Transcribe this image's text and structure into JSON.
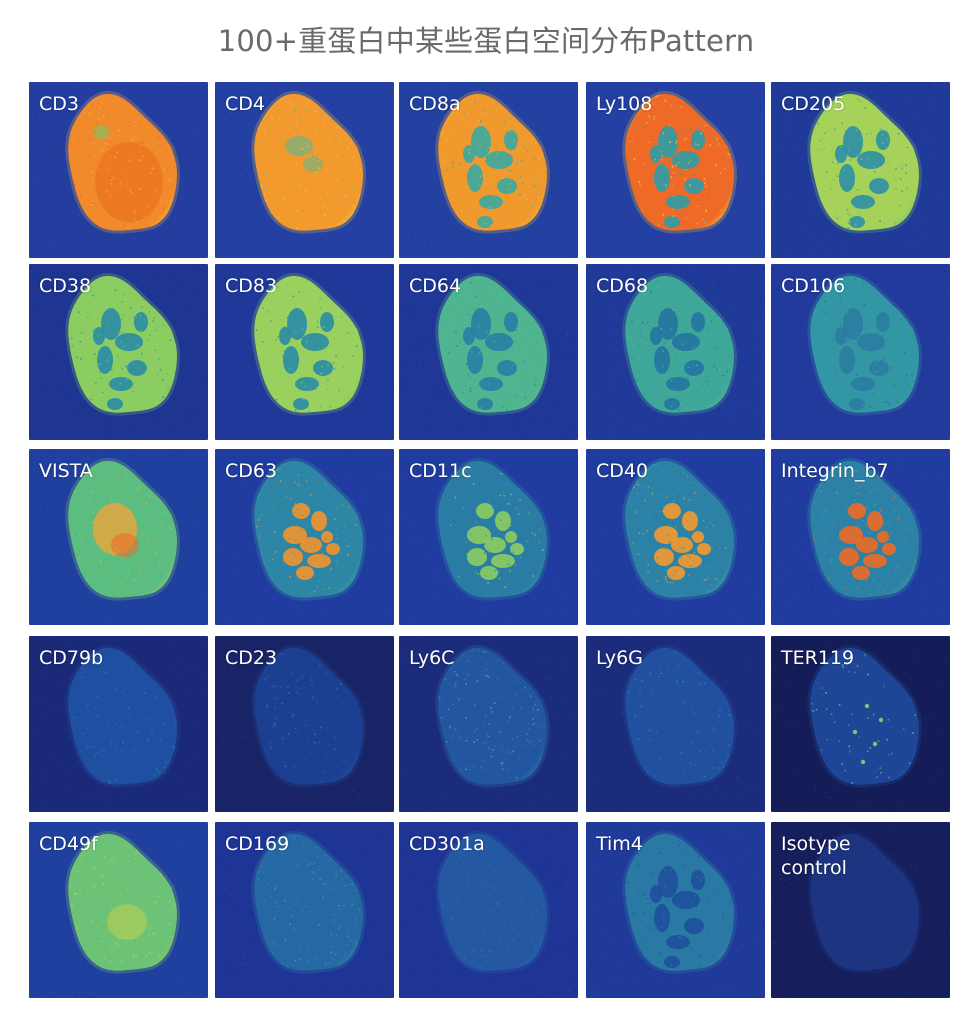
{
  "page": {
    "title": "100+重蛋白中某些蛋白空间分布Pattern"
  },
  "colors": {
    "label_text": "#ffffff",
    "title_text": "#6a6a6a",
    "scale_low": "#1a2a8a",
    "scale_mid_low": "#1e8fa8",
    "scale_mid": "#8fd46a",
    "scale_high": "#f7c43a",
    "scale_max": "#f06a1e"
  },
  "panels": [
    {
      "label": "CD3",
      "bg": "#243ea0",
      "tissue": "#f08a2a",
      "inner": "#e96a1c",
      "pattern": "solid",
      "rim": "#f4b23a"
    },
    {
      "label": "CD4",
      "bg": "#2340a2",
      "tissue": "#f29a2e",
      "inner": "#4fb99a",
      "pattern": "solid-blotch",
      "rim": "#f7c43a"
    },
    {
      "label": "CD8a",
      "bg": "#2341a0",
      "tissue": "#f09a2e",
      "inner": "#3aa9a0",
      "pattern": "islands",
      "rim": "#f6b43a"
    },
    {
      "label": "Ly108",
      "bg": "#2340a2",
      "tissue": "#ef6a26",
      "inner": "#2e9da8",
      "pattern": "islands",
      "rim": "#f7c43a"
    },
    {
      "label": "CD205",
      "bg": "#1f3a98",
      "tissue": "#a6d25a",
      "inner": "#2e8fa6",
      "pattern": "islands",
      "rim": "#7cc76a"
    },
    {
      "label": "CD38",
      "bg": "#1f3592",
      "tissue": "#8ccd62",
      "inner": "#2a8ca6",
      "pattern": "islands",
      "rim": "#7cc76a"
    },
    {
      "label": "CD83",
      "bg": "#20389a",
      "tissue": "#9ad05e",
      "inner": "#2a8ca6",
      "pattern": "islands",
      "rim": "#86ca66"
    },
    {
      "label": "CD64",
      "bg": "#1f3898",
      "tissue": "#4fb590",
      "inner": "#257fa4",
      "pattern": "islands",
      "rim": "#5cbb80"
    },
    {
      "label": "CD68",
      "bg": "#203a9a",
      "tissue": "#3fa79a",
      "inner": "#2475a0",
      "pattern": "islands",
      "rim": "#56b88a"
    },
    {
      "label": "CD106",
      "bg": "#213a9c",
      "tissue": "#3396a4",
      "inner": "#256f9e",
      "pattern": "faint-islands",
      "rim": "#3ea1a2"
    },
    {
      "label": "VISTA",
      "bg": "#2040a0",
      "tissue": "#5cbd80",
      "inner": "#f0a43a",
      "pattern": "center-hot",
      "rim": "#88cc66"
    },
    {
      "label": "CD63",
      "bg": "#203ca0",
      "tissue": "#2d86a6",
      "inner": "#f2932e",
      "pattern": "hot-islands",
      "rim": "#3aa2a0"
    },
    {
      "label": "CD11c",
      "bg": "#203ca0",
      "tissue": "#2a7ca4",
      "inner": "#8ccd62",
      "pattern": "hot-islands",
      "rim": "#2f92a4"
    },
    {
      "label": "CD40",
      "bg": "#203ca0",
      "tissue": "#2c82a6",
      "inner": "#f29a30",
      "pattern": "hot-islands",
      "rim": "#3aa2a0"
    },
    {
      "label": "Integrin_b7",
      "bg": "#203ca0",
      "tissue": "#2c82a6",
      "inner": "#ef6a26",
      "pattern": "hot-islands",
      "rim": "#3aa2a0"
    },
    {
      "label": "CD79b",
      "bg": "#1b2a78",
      "tissue": "#1f4fa0",
      "inner": "#2c7fa6",
      "pattern": "speckle",
      "rim": "#22549e"
    },
    {
      "label": "CD23",
      "bg": "#182466",
      "tissue": "#1d3f92",
      "inner": "#2c7fa6",
      "pattern": "speckle",
      "rim": "#22549e"
    },
    {
      "label": "Ly6C",
      "bg": "#1b2c7c",
      "tissue": "#2356a0",
      "inner": "#48ad98",
      "pattern": "speckle",
      "rim": "#2f7aa6"
    },
    {
      "label": "Ly6G",
      "bg": "#1b2c7c",
      "tissue": "#2150a0",
      "inner": "#2f86a6",
      "pattern": "speckle",
      "rim": "#22549e"
    },
    {
      "label": "TER119",
      "bg": "#151d58",
      "tissue": "#1f4596",
      "inner": "#7cc76a",
      "pattern": "sparse-dots",
      "rim": "#22549e"
    },
    {
      "label": "CD49f",
      "bg": "#2040a0",
      "tissue": "#6cc276",
      "inner": "#c9d24a",
      "pattern": "solid-speckle",
      "rim": "#8ccd62"
    },
    {
      "label": "CD169",
      "bg": "#1f3596",
      "tissue": "#2668a4",
      "inner": "#3ba4a0",
      "pattern": "faint",
      "rim": "#2e86a6"
    },
    {
      "label": "CD301a",
      "bg": "#1f3596",
      "tissue": "#2458a2",
      "inner": "#2c7fa6",
      "pattern": "faint",
      "rim": "#2a6aa4"
    },
    {
      "label": "Tim4",
      "bg": "#203a9a",
      "tissue": "#2a78a4",
      "inner": "#1f4f9c",
      "pattern": "islands-dark",
      "rim": "#2f8aa6"
    },
    {
      "label": "Isotype\ncontrol",
      "bg": "#161e5c",
      "tissue": "#1d3480",
      "inner": "#1f3c8a",
      "pattern": "faint",
      "rim": "#203a88"
    }
  ]
}
